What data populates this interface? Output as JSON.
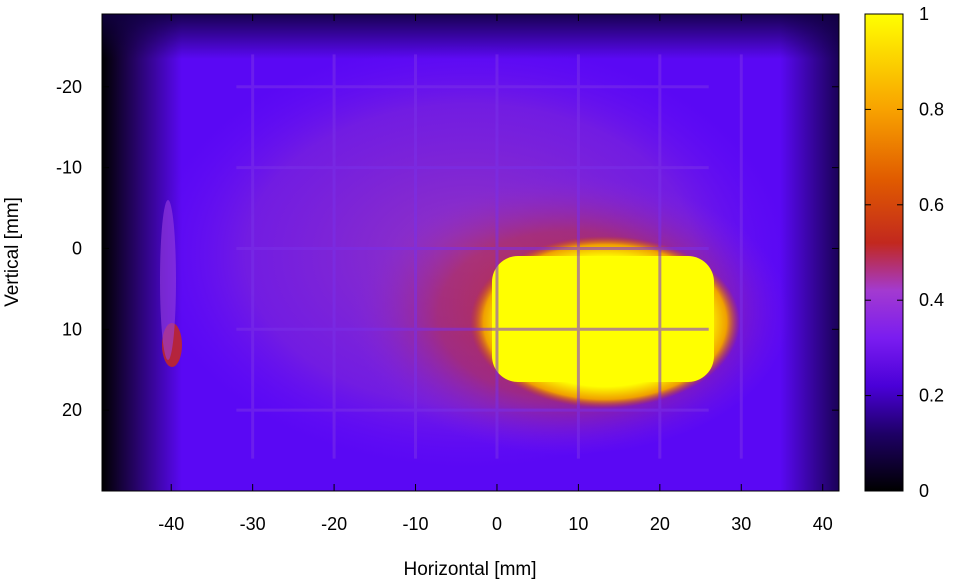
{
  "chart_data": {
    "type": "heatmap",
    "title": "",
    "xlabel": "Horizontal [mm]",
    "ylabel": "Vertical [mm]",
    "xlim": [
      -48.5,
      42
    ],
    "ylim": [
      -29,
      30
    ],
    "y_axis_inverted": true,
    "x_ticks": [
      -40,
      -30,
      -20,
      -10,
      0,
      10,
      20,
      30,
      40
    ],
    "y_ticks": [
      -20,
      -10,
      0,
      10,
      20
    ],
    "colorbar": {
      "range": [
        0,
        1
      ],
      "ticks": [
        0,
        0.2,
        0.4,
        0.6,
        0.8,
        1
      ],
      "tick_labels": [
        "0",
        "0.2",
        "0.4",
        "0.6",
        "0.8",
        "1"
      ],
      "colormap": [
        "#000000",
        "#3c00a0",
        "#6a0fff",
        "#9a2bd0",
        "#c2281e",
        "#e86a00",
        "#ffc000",
        "#ffff00"
      ]
    },
    "features": [
      {
        "name": "hot spot",
        "x_range": [
          0,
          27
        ],
        "y_range": [
          2,
          16
        ],
        "value": 1.0
      },
      {
        "name": "warm halo",
        "x_range": [
          -8,
          30
        ],
        "y_range": [
          -6,
          20
        ],
        "value": 0.55
      },
      {
        "name": "background plateau",
        "x_range": [
          -38,
          32
        ],
        "y_range": [
          -24,
          24
        ],
        "value": 0.3
      },
      {
        "name": "left edge spot",
        "x": -40,
        "y": 12,
        "value": 0.5
      }
    ],
    "grid_on": false
  }
}
